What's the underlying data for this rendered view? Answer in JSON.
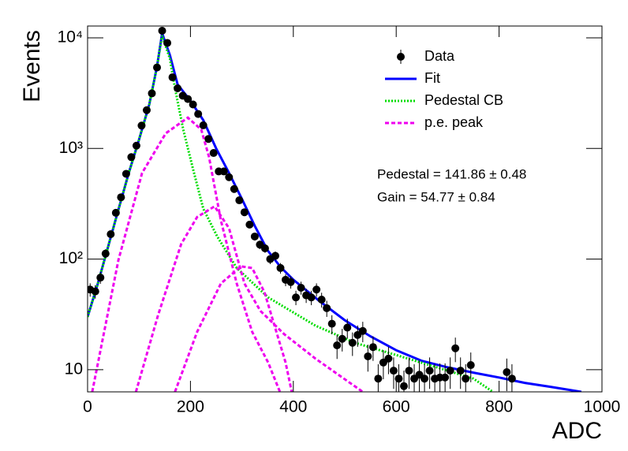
{
  "chart_data": {
    "type": "line",
    "x_label": "ADC",
    "y_label": "Events",
    "xlim": [
      0,
      1000
    ],
    "xticks": [
      0,
      200,
      400,
      600,
      800,
      1000
    ],
    "ylim": [
      6.3,
      12800
    ],
    "yticks": [
      10,
      {
        "value": 100,
        "label": "10²"
      },
      {
        "value": 1000,
        "label": "10³"
      },
      {
        "value": 10000,
        "label": "10⁴"
      }
    ],
    "log_y": true,
    "legend": "upper right",
    "annotations": [
      "Pedestal = 141.86 ± 0.48",
      "Gain = 54.77 ± 0.84"
    ],
    "series": [
      {
        "name": "Data",
        "type": "scatter",
        "color": "#000000",
        "x": [
          5,
          15,
          25,
          35,
          45,
          55,
          65,
          75,
          85,
          95,
          105,
          115,
          125,
          135,
          145,
          155,
          165,
          175,
          185,
          195,
          205,
          215,
          225,
          235,
          245,
          255,
          265,
          275,
          285,
          295,
          305,
          315,
          325,
          335,
          345,
          355,
          365,
          375,
          385,
          395,
          405,
          415,
          425,
          435,
          445,
          455,
          465,
          475,
          485,
          495,
          505,
          515,
          525,
          535,
          545,
          555,
          565,
          575,
          585,
          595,
          605,
          615,
          625,
          635,
          645,
          655,
          665,
          675,
          685,
          695,
          705,
          715,
          725,
          735,
          745,
          815,
          825
        ],
        "values": [
          53,
          51,
          68,
          112,
          168,
          262,
          362,
          590,
          835,
          1060,
          1610,
          2220,
          3150,
          5400,
          11600,
          9000,
          4400,
          3500,
          3000,
          2800,
          2500,
          2050,
          1620,
          1220,
          910,
          620,
          620,
          550,
          430,
          340,
          265,
          205,
          160,
          135,
          125,
          100,
          107,
          83,
          65,
          62,
          45,
          55,
          47,
          45,
          53,
          43,
          36,
          26,
          16.6,
          19,
          24,
          17.5,
          20.6,
          22.4,
          13.2,
          16,
          8.3,
          11.6,
          12.6,
          9.8,
          8.3,
          7.1,
          9.8,
          8.3,
          9,
          8.3,
          9.8,
          8.3,
          8.5,
          8.5,
          9.8,
          15.6,
          9.8,
          8.3,
          11,
          9.5,
          8.3
        ],
        "errors": [
          7.3,
          7.1,
          8.2,
          10.6,
          13,
          16,
          19,
          24,
          29,
          33,
          40,
          47,
          56,
          73,
          108,
          95,
          66,
          59,
          55,
          53,
          50,
          45,
          40,
          35,
          30,
          25,
          25,
          23,
          21,
          18,
          16,
          14,
          13,
          12,
          11,
          10,
          10,
          9.1,
          8.1,
          7.9,
          6.7,
          7.4,
          6.9,
          6.7,
          7.3,
          6.6,
          6,
          5.1,
          4.1,
          4.4,
          4.9,
          4.2,
          4.5,
          4.7,
          3.6,
          4,
          2.9,
          3.4,
          3.5,
          3.1,
          2.9,
          2.7,
          3.1,
          2.9,
          3,
          2.9,
          3.1,
          2.9,
          2.9,
          2.9,
          3.1,
          3.9,
          3.1,
          2.9,
          3.3,
          3.1,
          2.9
        ]
      },
      {
        "name": "Fit",
        "type": "line",
        "style": "solid",
        "color": "#0000ff",
        "x": [
          0,
          20,
          40,
          60,
          80,
          100,
          120,
          135,
          145,
          160,
          175,
          200,
          225,
          250,
          275,
          300,
          325,
          350,
          375,
          400,
          450,
          500,
          550,
          600,
          650,
          700,
          750,
          800,
          850,
          900,
          960
        ],
        "values": [
          30,
          60,
          130,
          280,
          600,
          1200,
          2500,
          5500,
          11000,
          7000,
          3800,
          2700,
          1800,
          1000,
          600,
          350,
          200,
          120,
          85,
          65,
          42,
          28,
          20,
          15,
          12,
          10.5,
          9.4,
          8.5,
          7.6,
          7,
          6.3
        ]
      },
      {
        "name": "Pedestal CB",
        "type": "line",
        "style": "dotted",
        "color": "#00dd00",
        "x": [
          0,
          20,
          40,
          60,
          80,
          100,
          120,
          135,
          145,
          160,
          170,
          186,
          205,
          225,
          252,
          290,
          351,
          443,
          520,
          597,
          673,
          750,
          788
        ],
        "values": [
          30,
          60,
          130,
          280,
          600,
          1200,
          2500,
          5500,
          10500,
          6500,
          3500,
          1480,
          650,
          285,
          160,
          83,
          45,
          25,
          17.5,
          13.7,
          10.7,
          8.3,
          6.3
        ]
      },
      {
        "name": "p.e. peak",
        "type": "line",
        "style": "dashed",
        "color": "#ee00ee",
        "x": [
          9,
          60,
          106,
          152,
          195,
          221,
          236,
          259,
          290,
          320,
          351,
          374,
          null,
          94,
          137,
          182,
          213,
          247,
          275,
          305,
          336,
          382,
          443,
          535,
          null,
          170,
          213,
          259,
          298,
          320,
          344,
          367,
          385,
          397
        ],
        "values": [
          6.3,
          98,
          600,
          1370,
          1900,
          1480,
          840,
          225,
          60,
          22,
          11.6,
          6.3,
          null,
          6.3,
          31,
          137,
          240,
          300,
          190,
          60,
          34,
          21,
          12.6,
          6.3,
          null,
          6.3,
          22,
          60,
          86,
          83,
          50,
          22,
          11.6,
          6.3
        ]
      }
    ]
  }
}
